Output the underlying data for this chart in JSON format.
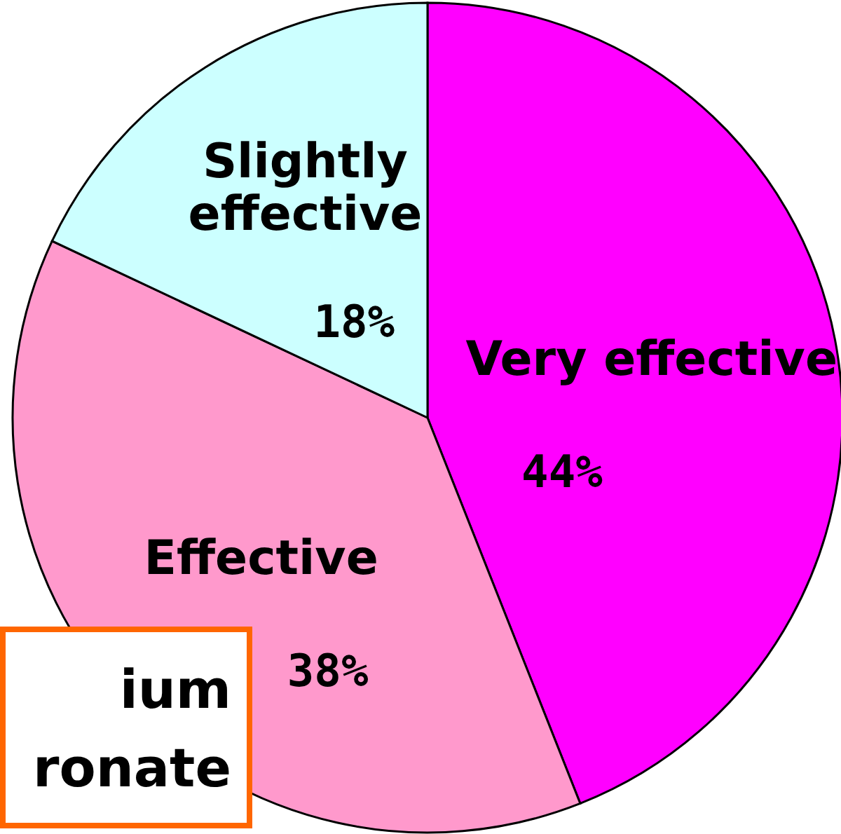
{
  "chart_data": {
    "type": "pie",
    "categories": [
      "Very effective",
      "Effective",
      "Slightly effective"
    ],
    "values": [
      44,
      38,
      18
    ],
    "colors": [
      "#ff00ff",
      "#ff99cc",
      "#ccffff"
    ],
    "value_labels": [
      "44%",
      "38%",
      "18%"
    ],
    "annotations": [
      "ium\nronate"
    ]
  }
}
